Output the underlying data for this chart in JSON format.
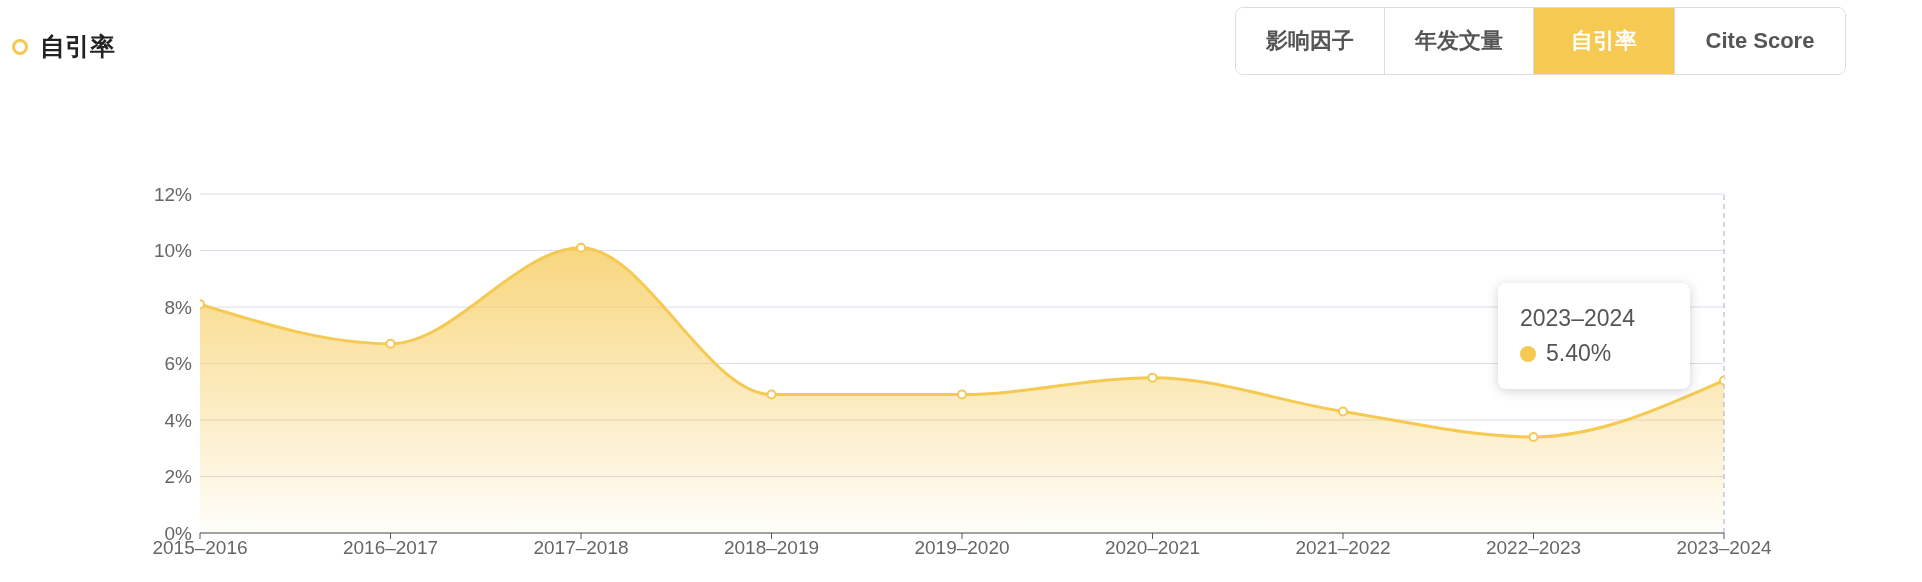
{
  "chart_data": {
    "type": "area",
    "title": "自引率",
    "categories": [
      "2015–2016",
      "2016–2017",
      "2017–2018",
      "2018–2019",
      "2019–2020",
      "2020–2021",
      "2021–2022",
      "2022–2023",
      "2023–2024"
    ],
    "series": [
      {
        "color": "#f5c952",
        "values": [
          8.1,
          6.7,
          10.1,
          4.9,
          4.9,
          5.5,
          4.3,
          3.4,
          5.4
        ]
      }
    ],
    "ylim": [
      0,
      12
    ],
    "yticks": [
      {
        "value": 0,
        "label": "0%"
      },
      {
        "value": 2,
        "label": "2%"
      },
      {
        "value": 4,
        "label": "4%"
      },
      {
        "value": 6,
        "label": "6%"
      },
      {
        "value": 8,
        "label": "8%"
      },
      {
        "value": 10,
        "label": "10%"
      },
      {
        "value": 12,
        "label": "12%"
      }
    ],
    "grid": "y",
    "marker": "circle",
    "ref_lines": [
      {
        "axis": "x",
        "value": "2023–2024",
        "line_style": "dashed",
        "color": "#a7abc8"
      }
    ],
    "annotations": [
      "影响因子",
      "年发文量",
      "自引率",
      "Cite Score",
      "2023–2024",
      "5.40%"
    ]
  }
}
